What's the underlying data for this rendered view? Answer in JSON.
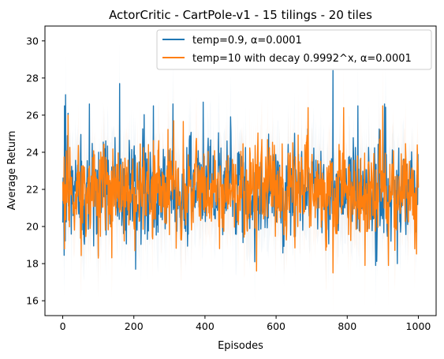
{
  "chart_data": {
    "type": "line",
    "title": "ActorCritic - CartPole-v1 - 15 tilings - 20 tiles",
    "xlabel": "Episodes",
    "ylabel": "Average Return",
    "xlim": [
      -50,
      1050
    ],
    "ylim": [
      15.2,
      30.8
    ],
    "xticks": [
      0,
      200,
      400,
      600,
      800,
      1000
    ],
    "yticks": [
      16,
      18,
      20,
      22,
      24,
      26,
      28,
      30
    ],
    "grid": false,
    "legend_position": "top-right",
    "episodes": 1000,
    "series": [
      {
        "name": "temp=0.9, α=0.0001",
        "color": "#1f77b4",
        "mean": 22.0,
        "spread": 1.25,
        "y_min": 17.6,
        "y_max": 28.4,
        "notable_points": [
          {
            "x": 5,
            "y": 26.5
          },
          {
            "x": 8,
            "y": 27.1
          },
          {
            "x": 15,
            "y": 26.1
          },
          {
            "x": 75,
            "y": 26.6
          },
          {
            "x": 100,
            "y": 18.4
          },
          {
            "x": 160,
            "y": 27.7
          },
          {
            "x": 205,
            "y": 17.7
          },
          {
            "x": 255,
            "y": 26.5
          },
          {
            "x": 310,
            "y": 26.6
          },
          {
            "x": 395,
            "y": 26.7
          },
          {
            "x": 540,
            "y": 18.1
          },
          {
            "x": 760,
            "y": 28.4
          },
          {
            "x": 830,
            "y": 26.5
          },
          {
            "x": 880,
            "y": 17.9
          },
          {
            "x": 905,
            "y": 26.6
          }
        ]
      },
      {
        "name": "temp=10 with decay 0.9992^x, α=0.0001",
        "color": "#ff7f0e",
        "mean": 22.0,
        "spread": 1.2,
        "y_min": 17.5,
        "y_max": 26.5,
        "notable_points": [
          {
            "x": 5,
            "y": 18.8
          },
          {
            "x": 15,
            "y": 26.0
          },
          {
            "x": 100,
            "y": 18.3
          },
          {
            "x": 545,
            "y": 17.6
          },
          {
            "x": 690,
            "y": 26.4
          },
          {
            "x": 760,
            "y": 17.5
          },
          {
            "x": 790,
            "y": 26.4
          },
          {
            "x": 850,
            "y": 17.9
          },
          {
            "x": 900,
            "y": 26.5
          },
          {
            "x": 990,
            "y": 18.8
          }
        ]
      }
    ]
  }
}
